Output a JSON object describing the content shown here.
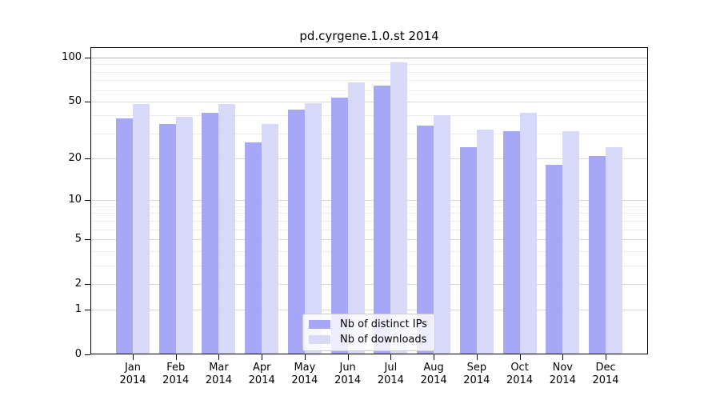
{
  "chart_data": {
    "type": "bar",
    "title": "pd.cyrgene.1.0.st 2014",
    "categories": [
      "Jan",
      "Feb",
      "Mar",
      "Apr",
      "May",
      "Jun",
      "Jul",
      "Aug",
      "Sep",
      "Oct",
      "Nov",
      "Dec"
    ],
    "year_label": "2014",
    "series": [
      {
        "name": "Nb of distinct IPs",
        "color": "#a0a0f6",
        "values": [
          38,
          35,
          42,
          26,
          44,
          53,
          64,
          34,
          24,
          31,
          18,
          21
        ]
      },
      {
        "name": "Nb of downloads",
        "color": "#d5d5f7",
        "values": [
          48,
          39,
          48,
          35,
          49,
          68,
          93,
          40,
          32,
          42,
          31,
          24
        ]
      }
    ],
    "yscale": "log1p",
    "ylim": [
      0,
      118
    ],
    "yticks": [
      0,
      1,
      2,
      5,
      10,
      20,
      50,
      100
    ],
    "minor_gridlines": [
      3,
      4,
      6,
      7,
      8,
      9,
      30,
      40,
      60,
      70,
      80,
      90
    ],
    "grid": "on",
    "legend_position": "bottom-center",
    "xlabel": "",
    "ylabel": "",
    "style": {
      "grid_major": "#d9d9d9",
      "grid_minor": "#ededed",
      "grid_top": "#b3b3b3",
      "spine": "#000000"
    }
  }
}
